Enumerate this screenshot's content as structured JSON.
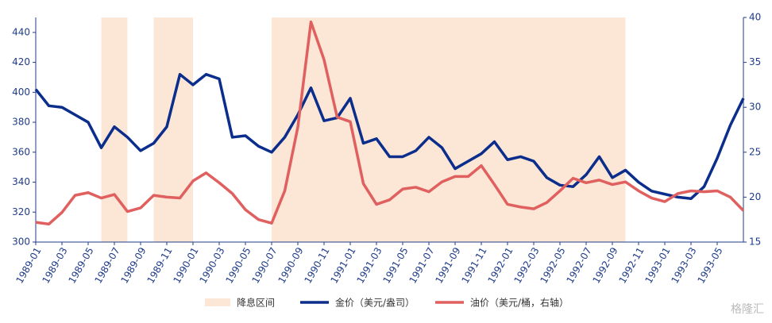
{
  "chart_data": {
    "type": "line",
    "categories": [
      "1989-01",
      null,
      "1989-03",
      null,
      "1989-05",
      null,
      "1989-07",
      null,
      "1989-09",
      null,
      "1989-11",
      null,
      "1990-01",
      null,
      "1990-03",
      null,
      "1990-05",
      null,
      "1990-07",
      null,
      "1990-09",
      null,
      "1990-11",
      null,
      "1991-01",
      null,
      "1991-03",
      null,
      "1991-05",
      null,
      "1991-07",
      null,
      "1991-09",
      null,
      "1991-11",
      null,
      "1992-01",
      null,
      "1992-03",
      null,
      "1992-05",
      null,
      "1992-07",
      null,
      "1992-09",
      null,
      "1992-11",
      null,
      "1993-01",
      null,
      "1993-03",
      null,
      "1993-05",
      null,
      null
    ],
    "series": [
      {
        "name": "金价（美元/盎司）",
        "color": "#0b2e8c",
        "values": [
          402,
          391,
          390,
          385,
          380,
          363,
          377,
          370,
          361,
          366,
          377,
          412,
          405,
          412,
          409,
          370,
          371,
          364,
          360,
          370,
          385,
          403,
          381,
          383,
          396,
          366,
          369,
          357,
          357,
          361,
          370,
          363,
          349,
          354,
          359,
          367,
          355,
          357,
          354,
          343,
          338,
          337,
          345,
          357,
          343,
          348,
          340,
          334,
          332,
          330,
          329,
          337,
          356,
          378,
          396
        ]
      },
      {
        "name": "油价（美元/桶，右轴）",
        "color": "#e0605f",
        "axis": "y2",
        "values": [
          17.2,
          17.0,
          18.3,
          20.2,
          20.5,
          19.9,
          20.3,
          18.4,
          18.8,
          20.2,
          20.0,
          19.9,
          21.8,
          22.7,
          21.6,
          20.4,
          18.6,
          17.5,
          17.1,
          20.7,
          27.8,
          39.5,
          35.3,
          28.9,
          28.4,
          21.5,
          19.2,
          19.7,
          20.9,
          21.1,
          20.6,
          21.7,
          22.3,
          22.3,
          23.5,
          21.4,
          19.2,
          18.9,
          18.7,
          19.4,
          20.7,
          22.1,
          21.6,
          21.9,
          21.4,
          21.7,
          20.7,
          19.9,
          19.5,
          20.4,
          20.7,
          20.6,
          20.7,
          20.0,
          18.5
        ]
      }
    ],
    "shaded_name": "降息区间",
    "shaded_color": "#fce6d6",
    "shaded": [
      [
        5,
        7
      ],
      [
        9,
        12
      ],
      [
        18,
        45
      ]
    ],
    "ylim": [
      300,
      450
    ],
    "yticks": [
      300,
      320,
      340,
      360,
      380,
      400,
      420,
      440
    ],
    "y2lim": [
      15,
      40
    ],
    "y2ticks": [
      15,
      20,
      25,
      30,
      35,
      40
    ],
    "watermark": "格隆汇"
  }
}
